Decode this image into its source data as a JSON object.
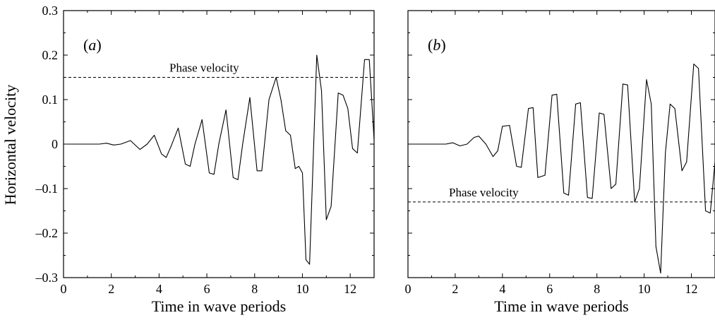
{
  "figure": {
    "ylabel": "Horizontal velocity"
  },
  "chart_data": [
    {
      "type": "line",
      "panel_label": "(a)",
      "xlabel": "Time in wave periods",
      "ylabel": "Horizontal velocity",
      "xlim": [
        0,
        13
      ],
      "ylim": [
        -0.3,
        0.3
      ],
      "xticks": [
        0,
        2,
        4,
        6,
        8,
        10,
        12
      ],
      "yticks": [
        -0.3,
        -0.2,
        -0.1,
        0,
        0.1,
        0.2,
        0.3
      ],
      "ytick_labels": [
        "–0.3",
        "–0.2",
        "–0.1",
        "0",
        "0.1",
        "0.2",
        "0.3"
      ],
      "grid": false,
      "reference_line": {
        "label": "Phase velocity",
        "y": 0.15,
        "style": "dashed"
      },
      "series": [
        {
          "x": [
            0,
            1.0,
            1.5,
            1.8,
            2.1,
            2.4,
            2.8,
            3.2,
            3.5,
            3.8,
            4.1,
            4.3,
            4.5,
            4.8,
            5.1,
            5.3,
            5.5,
            5.8,
            6.1,
            6.3,
            6.5,
            6.8,
            7.1,
            7.3,
            7.5,
            7.8,
            8.1,
            8.3,
            8.6,
            8.9,
            9.1,
            9.3,
            9.5,
            9.7,
            9.85,
            10.0,
            10.15,
            10.3,
            10.6,
            10.8,
            11.0,
            11.2,
            11.5,
            11.7,
            11.9,
            12.1,
            12.3,
            12.6,
            12.8,
            13.0
          ],
          "y": [
            0,
            0,
            0,
            0.002,
            -0.002,
            0,
            0.008,
            -0.012,
            0,
            0.02,
            -0.022,
            -0.03,
            -0.005,
            0.036,
            -0.045,
            -0.05,
            0,
            0.055,
            -0.065,
            -0.068,
            0,
            0.077,
            -0.075,
            -0.08,
            0,
            0.105,
            -0.06,
            -0.06,
            0.1,
            0.15,
            0.1,
            0.03,
            0.02,
            -0.055,
            -0.05,
            -0.065,
            -0.26,
            -0.27,
            0.2,
            0.12,
            -0.17,
            -0.14,
            0.115,
            0.11,
            0.08,
            -0.01,
            -0.02,
            0.19,
            0.19,
            0.01
          ]
        }
      ]
    },
    {
      "type": "line",
      "panel_label": "(b)",
      "xlabel": "Time in wave periods",
      "xlim": [
        0,
        13
      ],
      "ylim": [
        -0.3,
        0.3
      ],
      "xticks": [
        0,
        2,
        4,
        6,
        8,
        10,
        12
      ],
      "grid": false,
      "reference_line": {
        "label": "Phase velocity",
        "y": -0.13,
        "style": "dashed"
      },
      "series": [
        {
          "x": [
            0,
            1.2,
            1.6,
            1.9,
            2.2,
            2.5,
            2.8,
            3.0,
            3.3,
            3.6,
            3.8,
            4.0,
            4.3,
            4.6,
            4.8,
            5.1,
            5.3,
            5.5,
            5.8,
            6.1,
            6.3,
            6.6,
            6.8,
            7.1,
            7.3,
            7.6,
            7.8,
            8.1,
            8.3,
            8.6,
            8.8,
            9.1,
            9.3,
            9.6,
            9.8,
            10.1,
            10.3,
            10.5,
            10.7,
            10.9,
            11.1,
            11.3,
            11.6,
            11.8,
            12.1,
            12.3,
            12.6,
            12.8,
            13.0
          ],
          "y": [
            0,
            0,
            0,
            0.003,
            -0.004,
            0,
            0.015,
            0.018,
            0,
            -0.028,
            -0.015,
            0.04,
            0.042,
            -0.05,
            -0.052,
            0.08,
            0.082,
            -0.075,
            -0.07,
            0.11,
            0.112,
            -0.11,
            -0.115,
            0.09,
            0.093,
            -0.12,
            -0.122,
            0.07,
            0.067,
            -0.1,
            -0.09,
            0.135,
            0.133,
            -0.13,
            -0.1,
            0.145,
            0.09,
            -0.23,
            -0.29,
            -0.02,
            0.09,
            0.08,
            -0.06,
            -0.04,
            0.18,
            0.17,
            -0.15,
            -0.155,
            -0.04
          ]
        }
      ]
    }
  ]
}
